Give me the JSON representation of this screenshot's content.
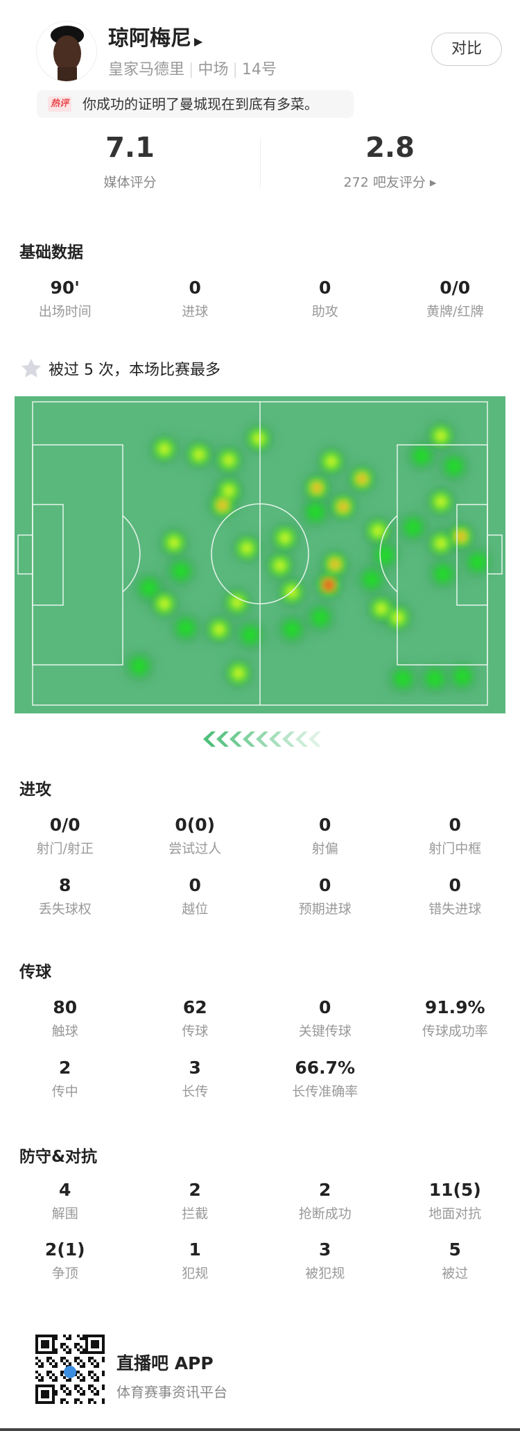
{
  "player": {
    "name": "琼阿梅尼",
    "team": "皇家马德里",
    "position": "中场",
    "number": "14号",
    "compare_label": "对比"
  },
  "hot_comment": {
    "badge": "热评",
    "text": "你成功的证明了曼城现在到底有多菜。"
  },
  "ratings": {
    "media_score": "7.1",
    "media_label": "媒体评分",
    "fan_score": "2.8",
    "fan_label": "272 吧友评分 ▸"
  },
  "basic": {
    "title": "基础数据",
    "items": [
      {
        "value": "90'",
        "label": "出场时间"
      },
      {
        "value": "0",
        "label": "进球"
      },
      {
        "value": "0",
        "label": "助攻"
      },
      {
        "value": "0/0",
        "label": "黄牌/红牌"
      }
    ]
  },
  "highlight": {
    "text": "被过 5 次，本场比赛最多"
  },
  "attack": {
    "title": "进攻",
    "rows": [
      [
        {
          "value": "0/0",
          "label": "射门/射正"
        },
        {
          "value": "0(0)",
          "label": "尝试过人"
        },
        {
          "value": "0",
          "label": "射偏"
        },
        {
          "value": "0",
          "label": "射门中框"
        }
      ],
      [
        {
          "value": "8",
          "label": "丢失球权"
        },
        {
          "value": "0",
          "label": "越位"
        },
        {
          "value": "0",
          "label": "预期进球"
        },
        {
          "value": "0",
          "label": "错失进球"
        }
      ]
    ]
  },
  "passing": {
    "title": "传球",
    "rows": [
      [
        {
          "value": "80",
          "label": "触球"
        },
        {
          "value": "62",
          "label": "传球"
        },
        {
          "value": "0",
          "label": "关键传球"
        },
        {
          "value": "91.9%",
          "label": "传球成功率"
        }
      ],
      [
        {
          "value": "2",
          "label": "传中"
        },
        {
          "value": "3",
          "label": "长传"
        },
        {
          "value": "66.7%",
          "label": "长传准确率"
        }
      ]
    ]
  },
  "defense": {
    "title": "防守&对抗",
    "rows": [
      [
        {
          "value": "4",
          "label": "解围"
        },
        {
          "value": "2",
          "label": "拦截"
        },
        {
          "value": "2",
          "label": "抢断成功"
        },
        {
          "value": "11(5)",
          "label": "地面对抗"
        }
      ],
      [
        {
          "value": "2(1)",
          "label": "争顶"
        },
        {
          "value": "1",
          "label": "犯规"
        },
        {
          "value": "3",
          "label": "被犯规"
        },
        {
          "value": "5",
          "label": "被过"
        }
      ]
    ]
  },
  "footer": {
    "app_name": "直播吧 APP",
    "tagline": "体育赛事资讯平台"
  },
  "colors": {
    "pitch": "#5bb87d",
    "accent": "#4fbf7a"
  }
}
